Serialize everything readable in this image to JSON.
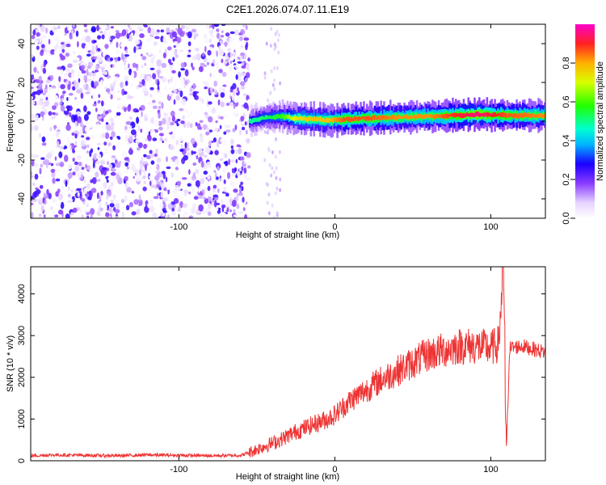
{
  "title": "C2E1.2026.074.07.11.E19",
  "chart_data": [
    {
      "type": "heatmap",
      "xlabel": "Height of straight line (km)",
      "ylabel": "Frequency (Hz)",
      "xlim": [
        -195,
        135
      ],
      "ylim": [
        -50,
        50
      ],
      "xticks": [
        -100,
        0,
        100
      ],
      "yticks": [
        -40,
        -20,
        0,
        20,
        40
      ],
      "colorbar": {
        "label": "Normalized spectral amplitude",
        "range": [
          0,
          1
        ],
        "ticks": [
          0.0,
          0.2,
          0.4,
          0.6,
          0.8
        ]
      },
      "noise_region": {
        "x_range": [
          -195,
          -55
        ],
        "freq_range": [
          -50,
          50
        ],
        "amplitude": [
          0.0,
          0.25
        ]
      },
      "ridge": [
        {
          "x": -55,
          "f": 0,
          "amp": 0.45
        },
        {
          "x": -45,
          "f": 2,
          "amp": 0.5
        },
        {
          "x": -35,
          "f": 2.5,
          "amp": 0.55
        },
        {
          "x": -25,
          "f": 1.5,
          "amp": 0.75
        },
        {
          "x": -15,
          "f": 1.0,
          "amp": 0.8
        },
        {
          "x": -5,
          "f": 0.5,
          "amp": 0.8
        },
        {
          "x": 5,
          "f": 1.0,
          "amp": 0.9
        },
        {
          "x": 20,
          "f": 1.5,
          "amp": 0.9
        },
        {
          "x": 40,
          "f": 2.0,
          "amp": 0.85
        },
        {
          "x": 60,
          "f": 2.5,
          "amp": 0.85
        },
        {
          "x": 80,
          "f": 3.0,
          "amp": 0.95
        },
        {
          "x": 90,
          "f": 3.5,
          "amp": 1.0
        },
        {
          "x": 110,
          "f": 3.0,
          "amp": 0.9
        },
        {
          "x": 135,
          "f": 3.0,
          "amp": 0.85
        }
      ]
    },
    {
      "type": "line",
      "xlabel": "Height of straight line (km)",
      "ylabel": "SNR (10 * v/v)",
      "xlim": [
        -195,
        135
      ],
      "ylim": [
        0,
        4650
      ],
      "xticks": [
        -100,
        0,
        100
      ],
      "yticks": [
        0,
        1000,
        2000,
        3000,
        4000
      ],
      "color": "#ee3333",
      "series": [
        {
          "x": [
            -195,
            -180,
            -160,
            -140,
            -120,
            -100,
            -80,
            -60,
            -55,
            -45,
            -35,
            -25,
            -15,
            -5,
            0,
            10,
            20,
            30,
            40,
            50,
            60,
            70,
            80,
            90,
            100,
            105,
            108,
            110,
            112,
            120,
            135
          ],
          "y": [
            120,
            140,
            130,
            120,
            140,
            130,
            120,
            130,
            200,
            350,
            500,
            700,
            850,
            1000,
            1100,
            1450,
            1700,
            1950,
            2150,
            2350,
            2550,
            2650,
            2750,
            2750,
            2700,
            2800,
            4600,
            200,
            2700,
            2750,
            2600
          ]
        }
      ]
    }
  ]
}
